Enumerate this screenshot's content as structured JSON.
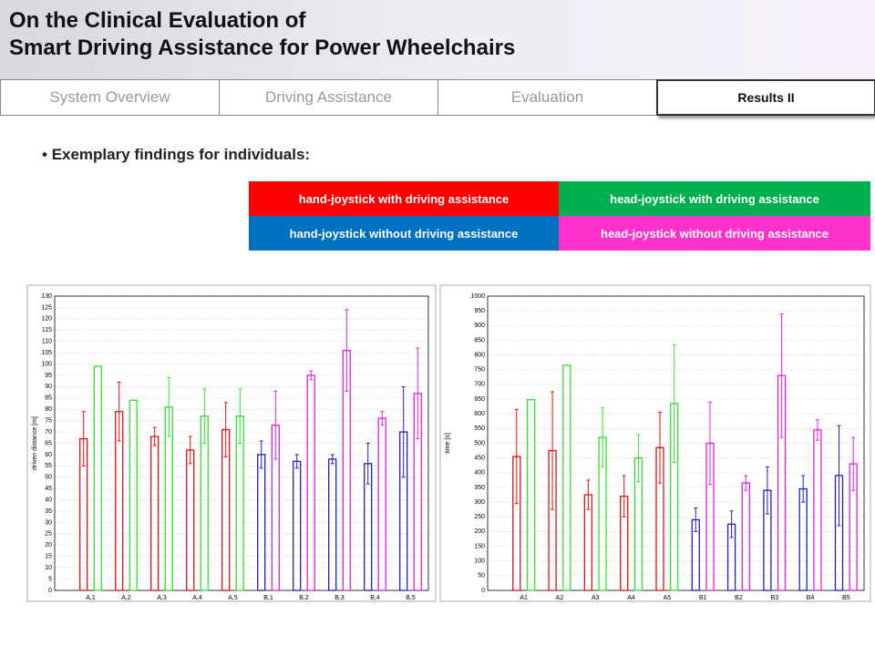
{
  "header": {
    "title_line1": "On the Clinical Evaluation of",
    "title_line2": "Smart Driving Assistance for Power Wheelchairs"
  },
  "tabs": [
    "System Overview",
    "Driving Assistance",
    "Evaluation",
    "Results II"
  ],
  "bullet": "Exemplary findings for individuals:",
  "legend": [
    {
      "name": "hand-joystick with driving assistance",
      "color": "#ff0000"
    },
    {
      "name": "head-joystick with driving assistance",
      "color": "#00b050"
    },
    {
      "name": "hand-joystick without driving assistance",
      "color": "#0070c0"
    },
    {
      "name": "head-joystick without driving assistance",
      "color": "#ff33cc"
    }
  ],
  "chart_data": [
    {
      "type": "bar",
      "ylabel": "driven distance [m]",
      "categories": [
        "A,1",
        "A,2",
        "A,3",
        "A,4",
        "A,5",
        "B,1",
        "B,2",
        "B,3",
        "B,4",
        "B,5"
      ],
      "ylim": [
        0,
        130
      ],
      "yticks": [
        0,
        5,
        10,
        15,
        20,
        25,
        30,
        35,
        40,
        45,
        50,
        55,
        60,
        65,
        70,
        75,
        80,
        85,
        90,
        95,
        100,
        105,
        110,
        115,
        120,
        125,
        130
      ],
      "grid": true,
      "series": [
        {
          "color": "#e01010",
          "values": [
            67,
            79,
            68,
            62,
            71,
            null,
            null,
            null,
            null,
            null
          ],
          "errors": [
            12,
            13,
            4,
            6,
            12,
            null,
            null,
            null,
            null,
            null
          ]
        },
        {
          "color": "#30e030",
          "values": [
            99,
            84,
            81,
            77,
            77,
            null,
            null,
            null,
            null,
            null
          ],
          "errors": [
            0,
            0,
            13,
            12,
            12,
            null,
            null,
            null,
            null,
            null
          ]
        },
        {
          "color": "#2020c0",
          "values": [
            null,
            null,
            null,
            null,
            null,
            60,
            57,
            58,
            56,
            70
          ],
          "errors": [
            null,
            null,
            null,
            null,
            null,
            6,
            3,
            2,
            9,
            20
          ]
        },
        {
          "color": "#e020e0",
          "values": [
            null,
            null,
            null,
            null,
            null,
            73,
            95,
            106,
            76,
            87
          ],
          "errors": [
            null,
            null,
            null,
            null,
            null,
            15,
            2,
            18,
            3,
            20
          ]
        }
      ]
    },
    {
      "type": "bar",
      "ylabel": "time [s]",
      "categories": [
        "A1",
        "A2",
        "A3",
        "A4",
        "A5",
        "B1",
        "B2",
        "B3",
        "B4",
        "B5"
      ],
      "ylim": [
        0,
        1000
      ],
      "yticks": [
        0,
        50,
        100,
        150,
        200,
        250,
        300,
        350,
        400,
        450,
        500,
        550,
        600,
        650,
        700,
        750,
        800,
        850,
        900,
        950,
        1000
      ],
      "grid": true,
      "series": [
        {
          "color": "#e01010",
          "values": [
            455,
            475,
            325,
            320,
            485,
            null,
            null,
            null,
            null,
            null
          ],
          "errors": [
            160,
            200,
            50,
            70,
            120,
            null,
            null,
            null,
            null,
            null
          ]
        },
        {
          "color": "#30e030",
          "values": [
            648,
            765,
            520,
            450,
            635,
            null,
            null,
            null,
            null,
            null
          ],
          "errors": [
            0,
            0,
            100,
            80,
            200,
            null,
            null,
            null,
            null,
            null
          ]
        },
        {
          "color": "#2020c0",
          "values": [
            null,
            null,
            null,
            null,
            null,
            240,
            225,
            340,
            345,
            390
          ],
          "errors": [
            null,
            null,
            null,
            null,
            null,
            40,
            45,
            80,
            45,
            170
          ]
        },
        {
          "color": "#e020e0",
          "values": [
            null,
            null,
            null,
            null,
            null,
            500,
            365,
            730,
            545,
            430
          ],
          "errors": [
            null,
            null,
            null,
            null,
            null,
            140,
            25,
            210,
            35,
            90
          ]
        }
      ]
    }
  ]
}
